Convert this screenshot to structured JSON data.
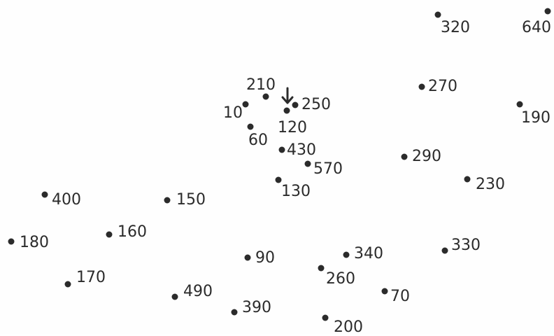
{
  "puzzle": {
    "colors": {
      "ink": "#2b2b2b",
      "background": "#fefefe"
    },
    "start_marker": "down-arrow-icon",
    "points": [
      {
        "label": "10"
      },
      {
        "label": "60"
      },
      {
        "label": "70"
      },
      {
        "label": "90"
      },
      {
        "label": "120"
      },
      {
        "label": "130"
      },
      {
        "label": "150"
      },
      {
        "label": "160"
      },
      {
        "label": "170"
      },
      {
        "label": "180"
      },
      {
        "label": "190"
      },
      {
        "label": "200"
      },
      {
        "label": "210"
      },
      {
        "label": "230"
      },
      {
        "label": "250"
      },
      {
        "label": "260"
      },
      {
        "label": "270"
      },
      {
        "label": "290"
      },
      {
        "label": "320"
      },
      {
        "label": "330"
      },
      {
        "label": "340"
      },
      {
        "label": "390"
      },
      {
        "label": "400"
      },
      {
        "label": "430"
      },
      {
        "label": "490"
      },
      {
        "label": "570"
      },
      {
        "label": "640"
      }
    ]
  }
}
